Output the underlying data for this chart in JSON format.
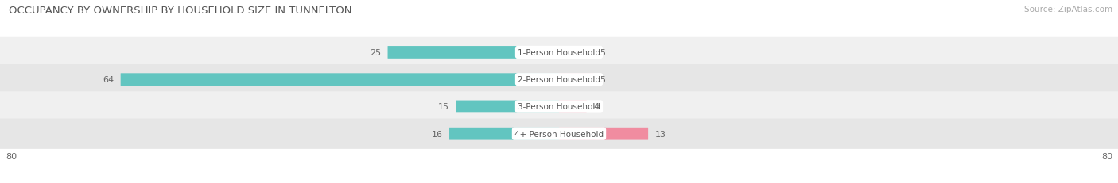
{
  "title": "OCCUPANCY BY OWNERSHIP BY HOUSEHOLD SIZE IN TUNNELTON",
  "source": "Source: ZipAtlas.com",
  "categories": [
    "1-Person Household",
    "2-Person Household",
    "3-Person Household",
    "4+ Person Household"
  ],
  "owner_values": [
    25,
    64,
    15,
    16
  ],
  "renter_values": [
    5,
    5,
    4,
    13
  ],
  "owner_color": "#62c5c0",
  "renter_color": "#f08ca0",
  "row_colors": [
    "#f0f0f0",
    "#e6e6e6",
    "#f0f0f0",
    "#e6e6e6"
  ],
  "axis_max": 80,
  "title_fontsize": 9.5,
  "source_fontsize": 7.5,
  "bar_label_fontsize": 8,
  "legend_fontsize": 8,
  "axis_label_fontsize": 8,
  "category_fontsize": 7.5,
  "value_color": "#666666",
  "title_color": "#555555",
  "source_color": "#aaaaaa",
  "legend_color": "#555555"
}
